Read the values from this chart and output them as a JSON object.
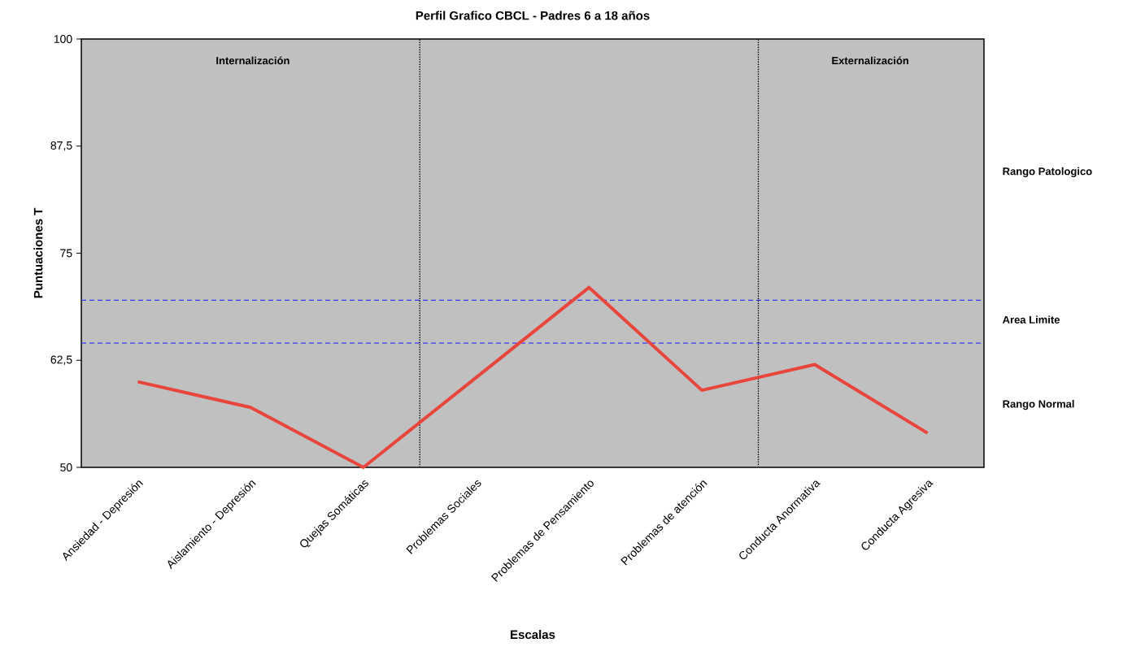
{
  "chart_data": {
    "type": "line",
    "title": "Perfil Grafico CBCL - Padres 6 a 18 años",
    "xlabel": "Escalas",
    "ylabel": "Puntuaciones T",
    "categories": [
      "Ansiedad - Depresión",
      "Aislamiento - Depresión",
      "Quejas Somáticas",
      "Problemas Sociales",
      "Problemas de Pensamiento",
      "Problemas de atención",
      "Conducta Anormativa",
      "Conducta Agresiva"
    ],
    "series": [
      {
        "color": "#e8453c",
        "values": [
          60,
          57,
          50,
          60.5,
          71,
          59,
          62,
          54
        ]
      }
    ],
    "ylim": [
      50,
      100
    ],
    "yticks": [
      50,
      {
        "value": 62.5,
        "label": "62,5"
      },
      75,
      {
        "value": 87.5,
        "label": "87,5"
      },
      100
    ],
    "ref_lines": [
      {
        "axis": "y",
        "value": 64.5,
        "color": "#3a3af0",
        "line_style": "dashed"
      },
      {
        "axis": "y",
        "value": 69.5,
        "color": "#3a3af0",
        "line_style": "dashed"
      }
    ],
    "line_style": "solid",
    "annotations": [
      "Internalización",
      "Externalización",
      "Rango Patologico",
      "Area Limite",
      "Rango Normal"
    ]
  }
}
